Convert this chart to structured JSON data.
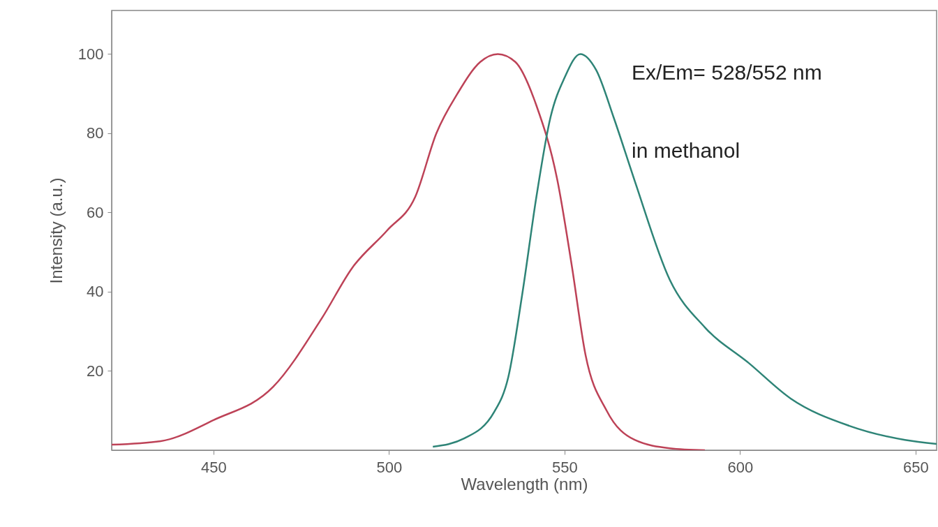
{
  "chart_data": {
    "type": "line",
    "xlabel": "Wavelength (nm)",
    "ylabel": "Intensity (a.u.)",
    "xlim": [
      421,
      656
    ],
    "ylim": [
      0,
      111
    ],
    "xticks": [
      450,
      500,
      550,
      600,
      650
    ],
    "yticks": [
      20,
      40,
      60,
      80,
      100
    ],
    "grid": false,
    "marker": "none",
    "line_style": "solid",
    "annotations": [
      "Ex/Em= 528/552 nm",
      "in methanol"
    ],
    "series": [
      {
        "color": "#bd4257",
        "x": [
          421,
          435,
          450,
          467,
          481,
          489.5,
          499.5,
          507.5,
          513.5,
          519.5,
          526,
          531,
          536,
          542,
          548,
          552,
          556,
          562,
          570,
          580,
          590
        ],
        "values": [
          1.4,
          2.3,
          7.6,
          16,
          33.5,
          46,
          55.5,
          64,
          80,
          90,
          98,
          100,
          98,
          87,
          68,
          47,
          24,
          10,
          2.6,
          0.5,
          0
        ]
      },
      {
        "color": "#2e8477",
        "x": [
          512.5,
          521.5,
          530,
          534,
          538,
          542,
          546,
          550,
          554.5,
          559,
          564,
          570,
          580,
          590,
          602.5,
          614.5,
          631,
          647,
          656
        ],
        "values": [
          0.9,
          3,
          9.7,
          18.5,
          39.6,
          64,
          84,
          94,
          100,
          96,
          84,
          68,
          43,
          31,
          22,
          13,
          6.2,
          2.6,
          1.6
        ]
      }
    ]
  }
}
